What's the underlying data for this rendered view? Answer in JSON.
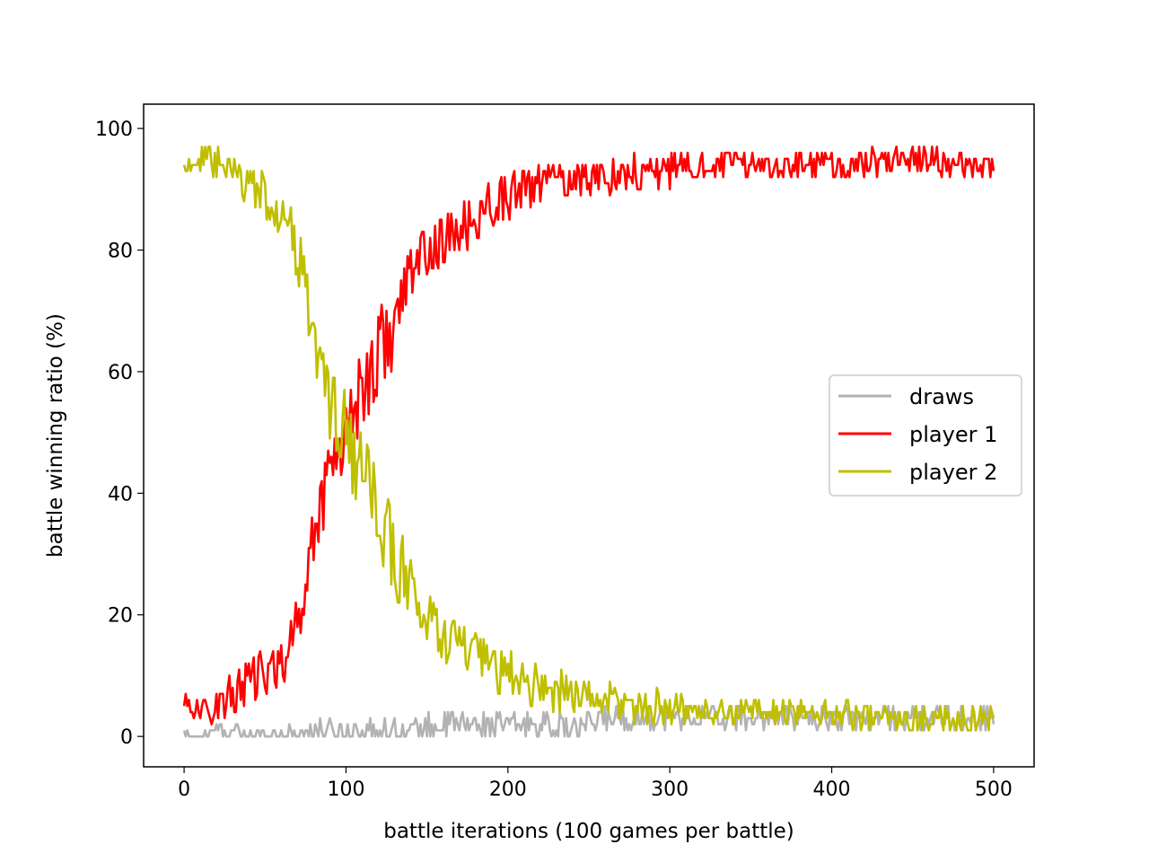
{
  "chart_data": {
    "type": "line",
    "title": "",
    "xlabel": "battle iterations (100 games per battle)",
    "ylabel": "battle winning ratio (%)",
    "xlim": [
      -25,
      525
    ],
    "ylim": [
      -5,
      104
    ],
    "xticks": [
      0,
      100,
      200,
      300,
      400,
      500
    ],
    "yticks": [
      0,
      20,
      40,
      60,
      80,
      100
    ],
    "grid": false,
    "legend_position": "center-right",
    "series": [
      {
        "name": "draws",
        "color": "#b3b3b3",
        "keypoints": [
          [
            0,
            0
          ],
          [
            10,
            0
          ],
          [
            20,
            1
          ],
          [
            40,
            0
          ],
          [
            60,
            0
          ],
          [
            80,
            1
          ],
          [
            100,
            1
          ],
          [
            120,
            1
          ],
          [
            140,
            1
          ],
          [
            160,
            2
          ],
          [
            180,
            2
          ],
          [
            200,
            2
          ],
          [
            220,
            2
          ],
          [
            240,
            1
          ],
          [
            250,
            2
          ],
          [
            260,
            3
          ],
          [
            280,
            3
          ],
          [
            300,
            3
          ],
          [
            320,
            3
          ],
          [
            340,
            3
          ],
          [
            360,
            3
          ],
          [
            380,
            3
          ],
          [
            400,
            3
          ],
          [
            420,
            3
          ],
          [
            440,
            3
          ],
          [
            460,
            3
          ],
          [
            480,
            3
          ],
          [
            500,
            3
          ]
        ],
        "noise": [
          0.8,
          0.8,
          1.2,
          1.5,
          1.6,
          1.8,
          2.0,
          2.0,
          2.0,
          2.2,
          2.0,
          2.0,
          2.2,
          2.2,
          2.0,
          2.0,
          2.2,
          2.2,
          2.2,
          2.2,
          2.2,
          2.0,
          2.0,
          2.2,
          2.2,
          2.2,
          2.0,
          2.0
        ],
        "min": 0,
        "max": 9
      },
      {
        "name": "player 1",
        "color": "#ff0000",
        "keypoints": [
          [
            0,
            6
          ],
          [
            10,
            4
          ],
          [
            20,
            5
          ],
          [
            30,
            7
          ],
          [
            40,
            9
          ],
          [
            50,
            10
          ],
          [
            60,
            12
          ],
          [
            70,
            18
          ],
          [
            80,
            33
          ],
          [
            90,
            45
          ],
          [
            100,
            50
          ],
          [
            110,
            58
          ],
          [
            120,
            63
          ],
          [
            130,
            68
          ],
          [
            140,
            76
          ],
          [
            150,
            80
          ],
          [
            160,
            81
          ],
          [
            170,
            83
          ],
          [
            180,
            85
          ],
          [
            190,
            88
          ],
          [
            200,
            89
          ],
          [
            210,
            90
          ],
          [
            220,
            91
          ],
          [
            240,
            92
          ],
          [
            260,
            92
          ],
          [
            280,
            93
          ],
          [
            300,
            93
          ],
          [
            320,
            94
          ],
          [
            340,
            94
          ],
          [
            360,
            94
          ],
          [
            380,
            94
          ],
          [
            400,
            94
          ],
          [
            420,
            94
          ],
          [
            440,
            95
          ],
          [
            460,
            95
          ],
          [
            480,
            94
          ],
          [
            500,
            94
          ]
        ],
        "noise": [
          1.5,
          2,
          3,
          3.5,
          4,
          4,
          4,
          5,
          6,
          6,
          7,
          8,
          8,
          7,
          5,
          4.5,
          4.5,
          4.5,
          4.5,
          4,
          4,
          3.5,
          3.5,
          3.5,
          3,
          3,
          3,
          2.5,
          2.5,
          2.5,
          2.5,
          2.5,
          2.5,
          2.5,
          2.5,
          2.5,
          2.5
        ],
        "min": 2,
        "max": 99
      },
      {
        "name": "player 2",
        "color": "#bfbf00",
        "keypoints": [
          [
            0,
            94
          ],
          [
            10,
            95
          ],
          [
            20,
            94
          ],
          [
            30,
            92
          ],
          [
            40,
            91
          ],
          [
            50,
            89
          ],
          [
            60,
            86
          ],
          [
            70,
            80
          ],
          [
            80,
            66
          ],
          [
            90,
            55
          ],
          [
            100,
            50
          ],
          [
            110,
            42
          ],
          [
            120,
            36
          ],
          [
            130,
            30
          ],
          [
            140,
            24
          ],
          [
            150,
            19
          ],
          [
            160,
            17
          ],
          [
            170,
            15
          ],
          [
            180,
            13
          ],
          [
            190,
            11
          ],
          [
            200,
            10
          ],
          [
            210,
            9
          ],
          [
            220,
            8
          ],
          [
            240,
            7
          ],
          [
            260,
            6
          ],
          [
            280,
            5
          ],
          [
            300,
            5
          ],
          [
            320,
            4
          ],
          [
            340,
            4
          ],
          [
            360,
            4
          ],
          [
            380,
            4
          ],
          [
            400,
            4
          ],
          [
            420,
            3
          ],
          [
            440,
            3
          ],
          [
            460,
            3
          ],
          [
            480,
            3
          ],
          [
            500,
            3
          ]
        ],
        "noise": [
          1.5,
          2,
          3,
          3.5,
          4,
          4,
          4,
          5,
          6,
          6,
          7,
          8,
          8,
          7,
          5,
          4.5,
          4.5,
          4.5,
          4.5,
          4,
          4,
          3.5,
          3.5,
          3.5,
          3,
          3,
          3,
          2.5,
          2.5,
          2.5,
          2.5,
          2.5,
          2.5,
          2.5,
          2.5,
          2.5,
          2.5
        ],
        "min": 0,
        "max": 98
      }
    ]
  }
}
